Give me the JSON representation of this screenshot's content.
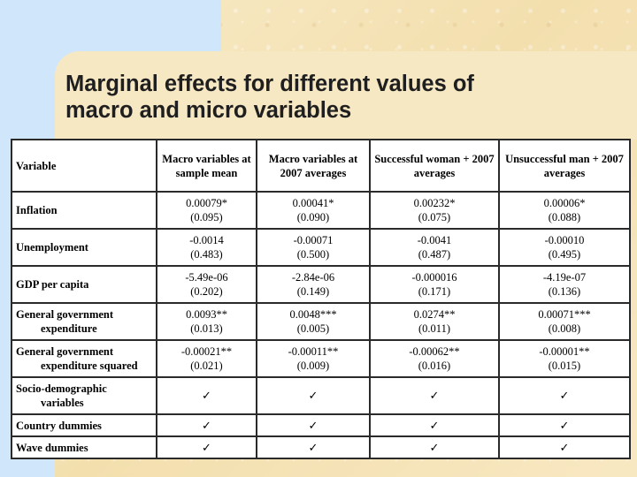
{
  "title": "Marginal effects for different values of\nmacro and micro variables",
  "table": {
    "headers": [
      "Variable",
      "Macro variables at sample mean",
      "Macro variables at 2007 averages",
      "Successful woman + 2007 averages",
      "Unsuccessful man + 2007 averages"
    ],
    "rows": [
      {
        "label": "Inflation",
        "cells": [
          [
            "0.00079*",
            "(0.095)"
          ],
          [
            "0.00041*",
            "(0.090)"
          ],
          [
            "0.00232*",
            "(0.075)"
          ],
          [
            "0.00006*",
            "(0.088)"
          ]
        ]
      },
      {
        "label": "Unemployment",
        "cells": [
          [
            "-0.0014",
            "(0.483)"
          ],
          [
            "-0.00071",
            "(0.500)"
          ],
          [
            "-0.0041",
            "(0.487)"
          ],
          [
            "-0.00010",
            "(0.495)"
          ]
        ]
      },
      {
        "label": "GDP per capita",
        "cells": [
          [
            "-5.49e-06",
            "(0.202)"
          ],
          [
            "-2.84e-06",
            "(0.149)"
          ],
          [
            "-0.000016",
            "(0.171)"
          ],
          [
            "-4.19e-07",
            "(0.136)"
          ]
        ]
      },
      {
        "label": "General government",
        "label2": "expenditure",
        "cells": [
          [
            "0.0093**",
            "(0.013)"
          ],
          [
            "0.0048***",
            "(0.005)"
          ],
          [
            "0.0274**",
            "(0.011)"
          ],
          [
            "0.00071***",
            "(0.008)"
          ]
        ]
      },
      {
        "label": "General government",
        "label2": "expenditure squared",
        "cells": [
          [
            "-0.00021**",
            "(0.021)"
          ],
          [
            "-0.00011**",
            "(0.009)"
          ],
          [
            "-0.00062**",
            "(0.016)"
          ],
          [
            "-0.00001**",
            "(0.015)"
          ]
        ]
      },
      {
        "label": "Socio-demographic",
        "label2": "variables",
        "checks": [
          "✓",
          "✓",
          "✓",
          "✓"
        ]
      },
      {
        "label": "Country dummies",
        "checks": [
          "✓",
          "✓",
          "✓",
          "✓"
        ]
      },
      {
        "label": "Wave dummies",
        "checks": [
          "✓",
          "✓",
          "✓",
          "✓"
        ]
      }
    ]
  }
}
